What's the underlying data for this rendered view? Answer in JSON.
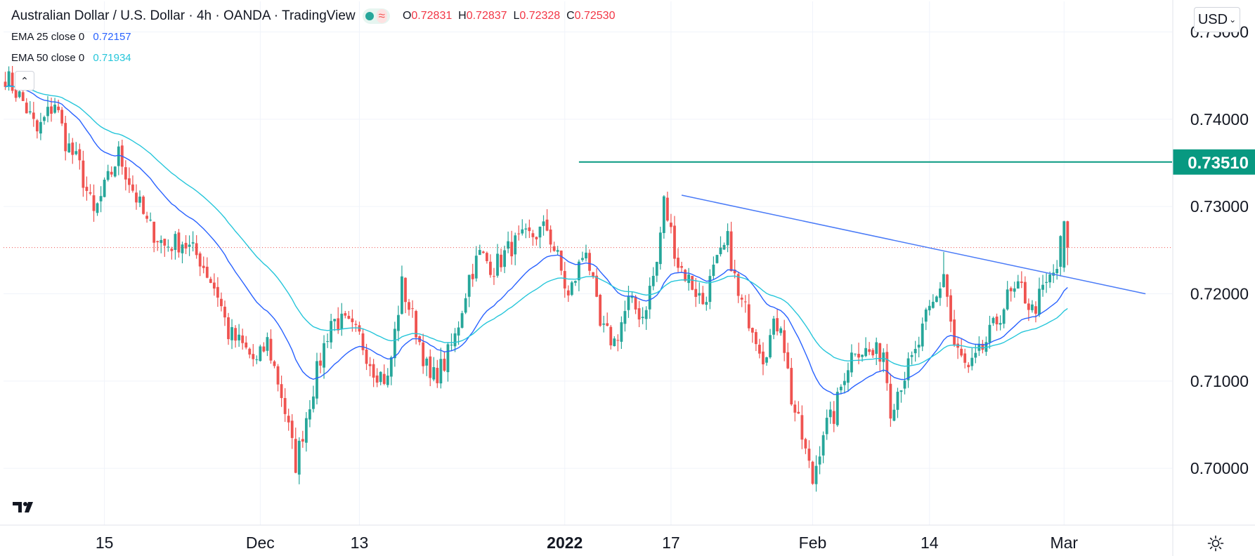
{
  "header": {
    "title": "Australian Dollar / U.S. Dollar · 4h · OANDA · TradingView",
    "ohlc": [
      {
        "key": "O",
        "value": "0.72831"
      },
      {
        "key": "H",
        "value": "0.72837"
      },
      {
        "key": "L",
        "value": "0.72328"
      },
      {
        "key": "C",
        "value": "0.72530"
      }
    ],
    "status_icon": "green-dot",
    "wave_icon": "≈"
  },
  "indicators": [
    {
      "label": "EMA 25 close 0",
      "value": "0.72157",
      "color": "#2962ff"
    },
    {
      "label": "EMA 50 close 0",
      "value": "0.71934",
      "color": "#26c6da"
    }
  ],
  "controls": {
    "currency": "USD",
    "collapse": "⌃"
  },
  "colors": {
    "up": "#26a69a",
    "down": "#ef5350",
    "ema25": "#2962ff",
    "ema50": "#26c6da",
    "resistance": "#089981",
    "trend": "#4a7bf7",
    "grid": "#f0f3fa",
    "axis_text": "#131722"
  },
  "chart_data": {
    "type": "candlestick",
    "symbol": "AUD/USD",
    "interval": "4h",
    "ylim": [
      0.6935,
      0.7535
    ],
    "y_ticks": [
      "0.75000",
      "0.74000",
      "0.73000",
      "0.72000",
      "0.71000",
      "0.70000"
    ],
    "y_tick_values": [
      0.75,
      0.74,
      0.73,
      0.72,
      0.71,
      0.7
    ],
    "x_range": [
      0,
      330
    ],
    "x_ticks": [
      {
        "label": "15",
        "bar": 28,
        "bold": false
      },
      {
        "label": "Dec",
        "bar": 72,
        "bold": false
      },
      {
        "label": "13",
        "bar": 100,
        "bold": false
      },
      {
        "label": "2022",
        "bar": 158,
        "bold": true
      },
      {
        "label": "17",
        "bar": 188,
        "bold": false
      },
      {
        "label": "Feb",
        "bar": 228,
        "bold": false
      },
      {
        "label": "14",
        "bar": 261,
        "bold": false
      },
      {
        "label": "Mar",
        "bar": 299,
        "bold": false
      }
    ],
    "anchors": [
      [
        0,
        0.745
      ],
      [
        5,
        0.742
      ],
      [
        9,
        0.7385
      ],
      [
        14,
        0.742
      ],
      [
        17,
        0.7375
      ],
      [
        21,
        0.7345
      ],
      [
        25,
        0.729
      ],
      [
        29,
        0.733
      ],
      [
        32,
        0.736
      ],
      [
        36,
        0.732
      ],
      [
        40,
        0.728
      ],
      [
        45,
        0.7255
      ],
      [
        50,
        0.726
      ],
      [
        55,
        0.724
      ],
      [
        60,
        0.72
      ],
      [
        63,
        0.7155
      ],
      [
        67,
        0.714
      ],
      [
        71,
        0.712
      ],
      [
        74,
        0.7145
      ],
      [
        78,
        0.7085
      ],
      [
        82,
        0.7005
      ],
      [
        85,
        0.706
      ],
      [
        88,
        0.711
      ],
      [
        92,
        0.717
      ],
      [
        96,
        0.7165
      ],
      [
        100,
        0.715
      ],
      [
        104,
        0.7115
      ],
      [
        108,
        0.71
      ],
      [
        112,
        0.721
      ],
      [
        116,
        0.716
      ],
      [
        120,
        0.71
      ],
      [
        124,
        0.712
      ],
      [
        127,
        0.715
      ],
      [
        131,
        0.722
      ],
      [
        134,
        0.7245
      ],
      [
        138,
        0.723
      ],
      [
        143,
        0.7255
      ],
      [
        148,
        0.7265
      ],
      [
        153,
        0.7275
      ],
      [
        156,
        0.724
      ],
      [
        159,
        0.7195
      ],
      [
        164,
        0.7255
      ],
      [
        168,
        0.716
      ],
      [
        172,
        0.7145
      ],
      [
        176,
        0.719
      ],
      [
        180,
        0.7175
      ],
      [
        184,
        0.7235
      ],
      [
        186,
        0.7305
      ],
      [
        188,
        0.727
      ],
      [
        190,
        0.7235
      ],
      [
        194,
        0.721
      ],
      [
        197,
        0.719
      ],
      [
        200,
        0.7225
      ],
      [
        204,
        0.726
      ],
      [
        207,
        0.7195
      ],
      [
        211,
        0.7165
      ],
      [
        214,
        0.713
      ],
      [
        217,
        0.716
      ],
      [
        219,
        0.717
      ],
      [
        222,
        0.708
      ],
      [
        225,
        0.7035
      ],
      [
        228,
        0.6985
      ],
      [
        231,
        0.7045
      ],
      [
        234,
        0.706
      ],
      [
        237,
        0.711
      ],
      [
        240,
        0.714
      ],
      [
        245,
        0.713
      ],
      [
        248,
        0.7135
      ],
      [
        250,
        0.707
      ],
      [
        253,
        0.71
      ],
      [
        257,
        0.713
      ],
      [
        260,
        0.717
      ],
      [
        263,
        0.7195
      ],
      [
        265,
        0.7225
      ],
      [
        268,
        0.714
      ],
      [
        272,
        0.711
      ],
      [
        275,
        0.713
      ],
      [
        279,
        0.716
      ],
      [
        283,
        0.7195
      ],
      [
        287,
        0.7205
      ],
      [
        290,
        0.718
      ],
      [
        294,
        0.721
      ],
      [
        297,
        0.723
      ],
      [
        299,
        0.7283
      ],
      [
        300,
        0.7253
      ]
    ],
    "last_price": 0.7253,
    "resistance_line": {
      "level": 0.7351,
      "label": "0.73510",
      "start_bar": 162
    },
    "trendline": {
      "from": [
        191,
        0.7313
      ],
      "to": [
        322,
        0.72
      ]
    },
    "series": [
      {
        "name": "EMA 25 close 0",
        "period": 25,
        "last": 0.72157
      },
      {
        "name": "EMA 50 close 0",
        "period": 50,
        "last": 0.71934
      }
    ]
  }
}
